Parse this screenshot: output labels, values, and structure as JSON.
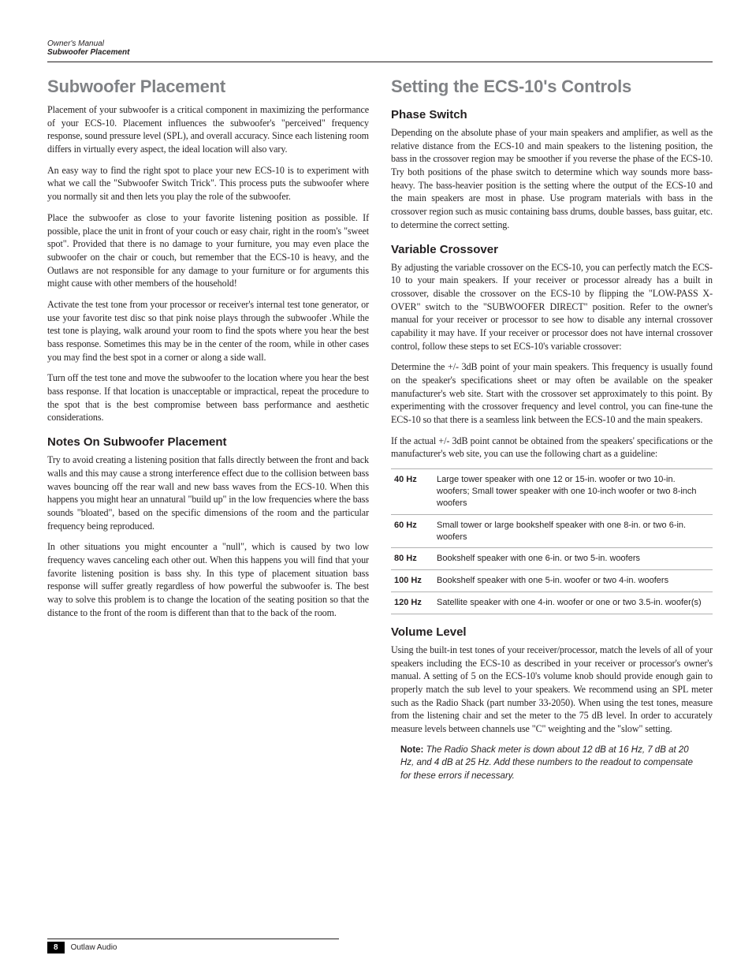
{
  "header": {
    "line1": "Owner's Manual",
    "line2": "Subwoofer Placement"
  },
  "left": {
    "h1": "Subwoofer Placement",
    "p1": "Placement of your subwoofer is a critical component in maximizing the performance of your ECS-10. Placement influences the subwoofer's \"perceived\" frequency response, sound pressure level (SPL), and overall accuracy. Since each listening room differs in virtually every aspect, the ideal location will also vary.",
    "p2": "An easy way to find the right spot to place your new ECS-10 is to experiment with what we call the \"Subwoofer Switch Trick\". This process puts the subwoofer where you normally sit and then lets you play the role of the subwoofer.",
    "p3": "Place the subwoofer as close to your favorite listening position as possible. If possible, place the unit in front of your couch or easy chair, right in the room's \"sweet spot\". Provided that there is no damage to your furniture, you may even place the subwoofer on the chair or couch, but remember that the ECS-10 is heavy, and the Outlaws are not responsible for any damage to your furniture or for arguments this might cause with other members of the household!",
    "p4": "Activate the test tone from your processor or receiver's internal test tone generator, or use your favorite test disc so that pink noise plays through the subwoofer .While the test tone is playing, walk around your room to find the spots where you hear the best bass response. Sometimes this may be in the center of the room, while in other cases you may find the best spot in a corner or along a side wall.",
    "p5": "Turn off the test tone and move the subwoofer to the location where you hear the best bass response. If that location is unacceptable or impractical, repeat the procedure to the spot that is the best compromise between bass performance and aesthetic considerations.",
    "h2_notes": "Notes On Subwoofer Placement",
    "p6": "Try to avoid creating a listening position that falls directly between the front and back walls and this may cause a strong interference effect due to the collision between bass waves bouncing off the rear wall and new bass waves from the ECS-10. When this happens you might hear an unnatural \"build up\" in the low frequencies where the bass sounds \"bloated\", based on the specific dimensions of the room and the particular frequency being reproduced.",
    "p7": "In other situations you might encounter a \"null\", which is caused by two low frequency waves canceling each other out. When this happens you will find that your favorite listening position is bass shy. In this type of placement situation bass response will suffer greatly regardless of how powerful the subwoofer is. The best way to solve this problem is to change the location of the seating position so that the distance to the front of the room is different than that to the back of the room."
  },
  "right": {
    "h1": "Setting the ECS-10's Controls",
    "h2_phase": "Phase Switch",
    "p_phase": "Depending on the absolute phase of your main speakers and amplifier, as well as the relative distance from the ECS-10 and main speakers to the listening position, the bass in the crossover region may be smoother if you reverse the phase of the ECS-10. Try both positions of the phase switch to determine which way sounds more bass-heavy. The bass-heavier position is the setting where the output of the ECS-10 and the main speakers are most in phase. Use program materials with bass in the crossover region such as music containing bass drums, double basses, bass guitar, etc. to determine the correct setting.",
    "h2_xover": "Variable Crossover",
    "p_xover1": "By adjusting the variable crossover on the ECS-10, you can perfectly match the ECS-10 to your main speakers. If your receiver or processor already has a built in crossover, disable the crossover on the ECS-10 by flipping the \"LOW-PASS X-OVER\" switch to the \"SUBWOOFER DIRECT\" position. Refer to the owner's manual for your receiver or processor to see how to disable any internal crossover capability it may have. If your receiver or processor does not have internal crossover control, follow these steps to set ECS-10's variable crossover:",
    "p_xover2": "Determine the +/- 3dB point of your main speakers. This frequency is usually found on the speaker's specifications sheet or may often be available on the speaker manufacturer's web site. Start with the crossover set approximately to this point. By experimenting with the crossover frequency and level control, you can fine-tune the ECS-10 so that there is a seamless link between the ECS-10 and the main speakers.",
    "p_xover3": "If the actual +/- 3dB point cannot be obtained from the speakers' specifications or the manufacturer's web site, you can use the following chart as a guideline:",
    "table": [
      {
        "hz": "40 Hz",
        "desc": "Large tower speaker with one 12 or 15-in. woofer or two 10-in. woofers; Small tower speaker with one 10-inch woofer or two 8-inch woofers"
      },
      {
        "hz": "60 Hz",
        "desc": "Small tower or large bookshelf speaker with one 8-in. or two 6-in. woofers"
      },
      {
        "hz": "80 Hz",
        "desc": "Bookshelf speaker with one 6-in. or two 5-in. woofers"
      },
      {
        "hz": "100 Hz",
        "desc": "Bookshelf speaker with one 5-in. woofer or two 4-in. woofers"
      },
      {
        "hz": "120 Hz",
        "desc": "Satellite speaker with one 4-in. woofer or one or two 3.5-in. woofer(s)"
      }
    ],
    "h2_vol": "Volume Level",
    "p_vol": "Using the built-in test tones of your receiver/processor, match the levels of all of your speakers including the ECS-10 as described in your receiver or processor's owner's manual. A setting of 5 on the ECS-10's volume knob should provide enough gain to properly match the sub level to your speakers. We recommend using an SPL meter such as the Radio Shack (part number 33-2050). When using the test tones, measure from the listening chair and set the meter to the 75 dB level. In order to accurately measure levels between channels use \"C\" weighting and the \"slow\" setting.",
    "note_label": "Note:",
    "note_body": " The Radio Shack meter is down about 12 dB at 16 Hz, 7 dB at 20 Hz, and 4 dB at 25 Hz. Add these numbers to the readout to compensate for these errors if necessary."
  },
  "footer": {
    "page": "8",
    "brand": "Outlaw Audio"
  }
}
